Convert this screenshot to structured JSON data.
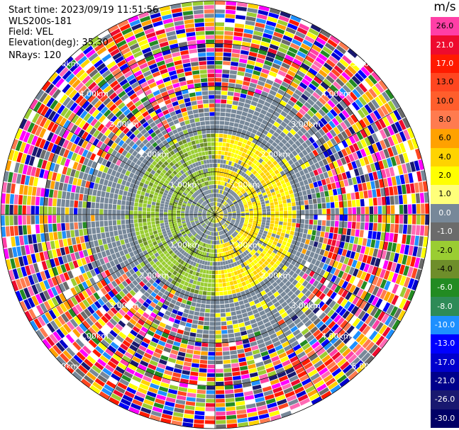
{
  "header": {
    "start_time": "Start time: 2023/09/19 11:51:56",
    "site": "WLS200s-181",
    "field": "Field: VEL",
    "elevation": "Elevation(deg): 35.30",
    "nrays": "NRays: 120"
  },
  "colorbar": {
    "unit": "m/s",
    "levels": [
      {
        "label": "26.0",
        "color": "#ff3fa6"
      },
      {
        "label": "21.0",
        "color": "#ee0b2e"
      },
      {
        "label": "17.0",
        "color": "#ff1a00"
      },
      {
        "label": "13.0",
        "color": "#ff4620"
      },
      {
        "label": "10.0",
        "color": "#ff5e2c"
      },
      {
        "label": "8.0",
        "color": "#ff7b4f"
      },
      {
        "label": "6.0",
        "color": "#ffa100"
      },
      {
        "label": "4.0",
        "color": "#ffd300"
      },
      {
        "label": "2.0",
        "color": "#ffff00"
      },
      {
        "label": "1.0",
        "color": "#ffff7a"
      },
      {
        "label": "0.0",
        "color": "#778899"
      },
      {
        "label": "-1.0",
        "color": "#6b6b6b"
      },
      {
        "label": "-2.0",
        "color": "#9acd32"
      },
      {
        "label": "-4.0",
        "color": "#6e8e2a"
      },
      {
        "label": "-6.0",
        "color": "#228b22"
      },
      {
        "label": "-8.0",
        "color": "#2e8b57"
      },
      {
        "label": "-10.0",
        "color": "#1e90ff"
      },
      {
        "label": "-13.0",
        "color": "#0000ff"
      },
      {
        "label": "-17.0",
        "color": "#0000cd"
      },
      {
        "label": "-21.0",
        "color": "#00008b"
      },
      {
        "label": "-26.0",
        "color": "#191970"
      },
      {
        "label": "-30.0",
        "color": "#000066"
      }
    ]
  },
  "chart_data": {
    "type": "heatmap",
    "projection": "polar PPI",
    "range_rings": [
      {
        "label": "1.00km"
      },
      {
        "label": "2.00km"
      },
      {
        "label": "3.00km"
      },
      {
        "label": "4.00km"
      },
      {
        "label": "5.00km"
      }
    ],
    "nrays": 120
  }
}
